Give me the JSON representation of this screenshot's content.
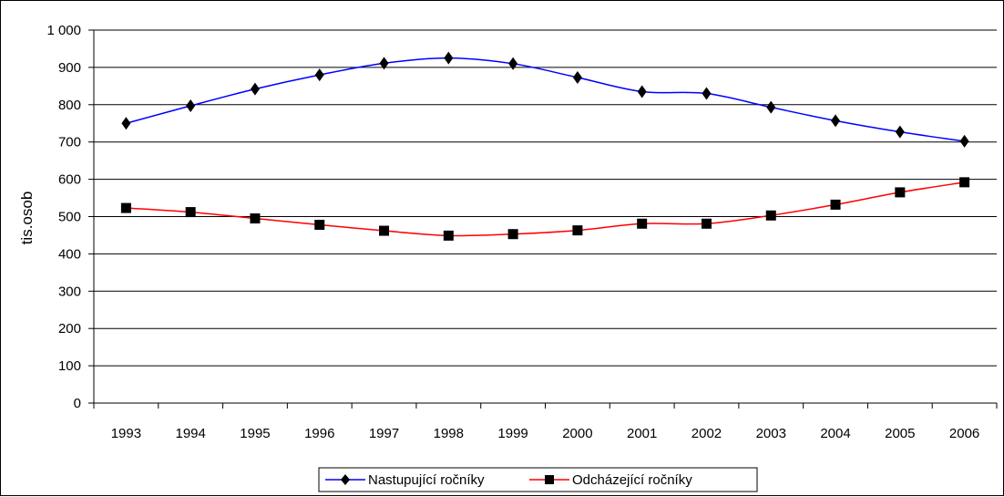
{
  "chart_data": {
    "type": "line",
    "categories": [
      "1993",
      "1994",
      "1995",
      "1996",
      "1997",
      "1998",
      "1999",
      "2000",
      "2001",
      "2002",
      "2003",
      "2004",
      "2005",
      "2006"
    ],
    "series": [
      {
        "name": "Nastupující ročníky",
        "color": "#0000ff",
        "marker": "diamond",
        "values": [
          750,
          797,
          842,
          880,
          911,
          925,
          910,
          873,
          835,
          830,
          793,
          757,
          727,
          702
        ]
      },
      {
        "name": "Odcházející ročníky",
        "color": "#ff0000",
        "marker": "square",
        "values": [
          523,
          512,
          495,
          478,
          462,
          449,
          453,
          463,
          481,
          481,
          503,
          532,
          565,
          592
        ]
      }
    ],
    "ylabel": "tis.osob",
    "xlabel": "",
    "title": "",
    "ylim": [
      0,
      1000
    ],
    "yticks": [
      0,
      100,
      200,
      300,
      400,
      500,
      600,
      700,
      800,
      900,
      1000
    ],
    "ytick_labels": [
      "0",
      "100",
      "200",
      "300",
      "400",
      "500",
      "600",
      "700",
      "800",
      "900",
      "1 000"
    ],
    "grid": true,
    "legend_position": "bottom"
  }
}
